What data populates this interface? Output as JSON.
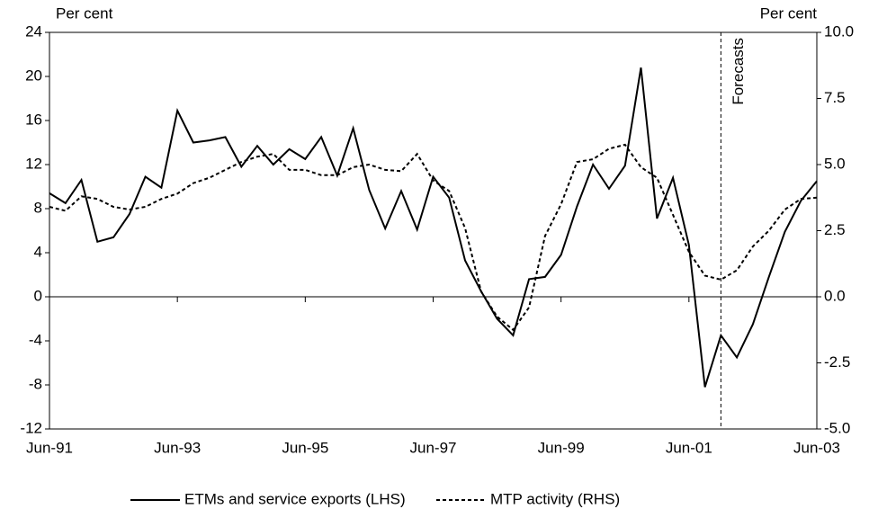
{
  "chart_data": {
    "type": "line",
    "y_label": "Per cent",
    "y2_label": "Per cent",
    "categories": [
      "Jun-91",
      null,
      null,
      null,
      null,
      null,
      null,
      null,
      "Jun-93",
      null,
      null,
      null,
      null,
      null,
      null,
      null,
      "Jun-95",
      null,
      null,
      null,
      null,
      null,
      null,
      null,
      "Jun-97",
      null,
      null,
      null,
      null,
      null,
      null,
      null,
      "Jun-99",
      null,
      null,
      null,
      null,
      null,
      null,
      null,
      "Jun-01",
      null,
      null,
      null,
      null,
      null,
      null,
      null,
      "Jun-03"
    ],
    "series": [
      {
        "name": "ETMs and service exports (LHS)",
        "color": "#000000",
        "style": "solid",
        "axis": "y",
        "values": [
          9.4,
          8.5,
          10.6,
          5.0,
          5.4,
          7.5,
          10.9,
          9.9,
          16.9,
          14.0,
          14.2,
          14.5,
          11.8,
          13.7,
          12.0,
          13.4,
          12.5,
          14.5,
          11.0,
          15.3,
          9.7,
          6.2,
          9.6,
          6.1,
          10.9,
          9.0,
          3.3,
          0.5,
          -2.0,
          -3.5,
          1.6,
          1.8,
          3.8,
          8.2,
          12.0,
          9.8,
          11.9,
          20.8,
          7.1,
          10.8,
          4.7,
          -8.2,
          -3.5,
          -5.5,
          -2.5,
          1.8,
          5.9,
          8.7,
          10.5
        ]
      },
      {
        "name": "MTP activity (RHS)",
        "color": "#000000",
        "style": "dashed",
        "axis": "y2",
        "values": [
          3.4,
          3.25,
          3.8,
          3.7,
          3.4,
          3.3,
          3.4,
          3.7,
          3.9,
          4.3,
          4.5,
          4.8,
          5.1,
          5.3,
          5.4,
          4.8,
          4.8,
          4.6,
          4.6,
          4.9,
          5.0,
          4.8,
          4.75,
          5.4,
          4.4,
          4.0,
          2.6,
          0.2,
          -0.75,
          -1.25,
          -0.4,
          2.3,
          3.5,
          5.1,
          5.2,
          5.6,
          5.75,
          4.9,
          4.5,
          3.1,
          1.7,
          0.8,
          0.65,
          1.0,
          1.9,
          2.5,
          3.3,
          3.7,
          3.75
        ]
      }
    ],
    "ylim": [
      -12,
      24
    ],
    "yticks": [
      -12,
      -8,
      -4,
      0,
      4,
      8,
      12,
      16,
      20,
      24
    ],
    "y2lim": [
      -5,
      10
    ],
    "y2ticks": [
      {
        "value": -5,
        "label": "-5.0"
      },
      -2.5,
      {
        "value": 0,
        "label": "0.0"
      },
      2.5,
      {
        "value": 5,
        "label": "5.0"
      },
      7.5,
      {
        "value": 10,
        "label": "10.0"
      }
    ],
    "annotation": {
      "text": "Forecasts",
      "at_index": 42
    },
    "legend": "bottom"
  }
}
